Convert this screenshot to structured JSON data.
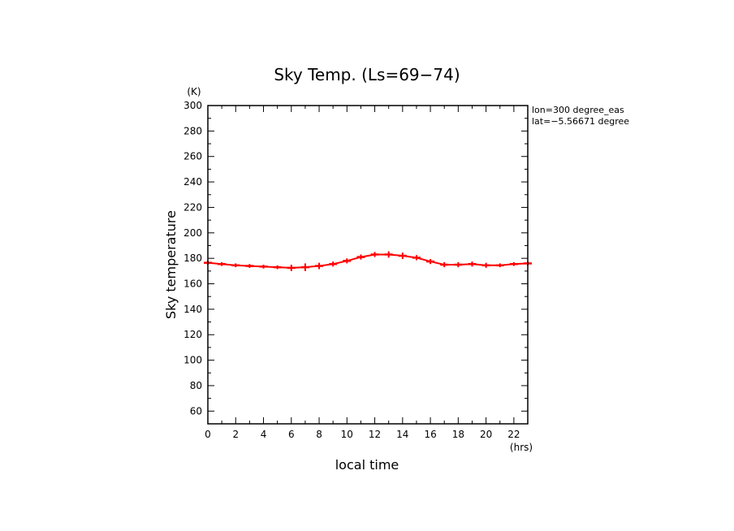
{
  "chart_data": {
    "type": "line",
    "title": "Sky Temp. (Ls=69−74)",
    "xlabel": "local time",
    "ylabel": "Sky temperature",
    "x_unit": "(hrs)",
    "y_unit": "(K)",
    "xlim": [
      0,
      23
    ],
    "ylim": [
      50,
      300
    ],
    "x_ticks": [
      0,
      2,
      4,
      6,
      8,
      10,
      12,
      14,
      16,
      18,
      20,
      22
    ],
    "y_ticks": [
      60,
      80,
      100,
      120,
      140,
      160,
      180,
      200,
      220,
      240,
      260,
      280,
      300
    ],
    "annotations": [
      "lon=300 degree_eas",
      "lat=−5.56671 degree"
    ],
    "grid": false,
    "legend": "none",
    "color": "#ff0000",
    "series": [
      {
        "x": [
          0,
          1,
          2,
          3,
          4,
          5,
          6,
          7,
          8,
          9,
          10,
          11,
          12,
          13,
          14,
          15,
          16,
          17,
          18,
          19,
          20,
          21,
          22,
          23
        ],
        "values": [
          176.5,
          175.5,
          174.5,
          174,
          173.5,
          173,
          172.5,
          173,
          174,
          175.5,
          178,
          181,
          183,
          183,
          182,
          180.5,
          177.5,
          175,
          175,
          175.5,
          174.5,
          174.5,
          175.5,
          176
        ],
        "error": [
          1.5,
          1.5,
          1.5,
          1.5,
          1.5,
          1.5,
          2.5,
          3,
          2.5,
          2,
          2,
          2,
          2,
          2.5,
          2.5,
          2,
          2,
          2,
          2,
          2,
          2,
          1.5,
          1.5,
          1.5
        ]
      }
    ]
  }
}
